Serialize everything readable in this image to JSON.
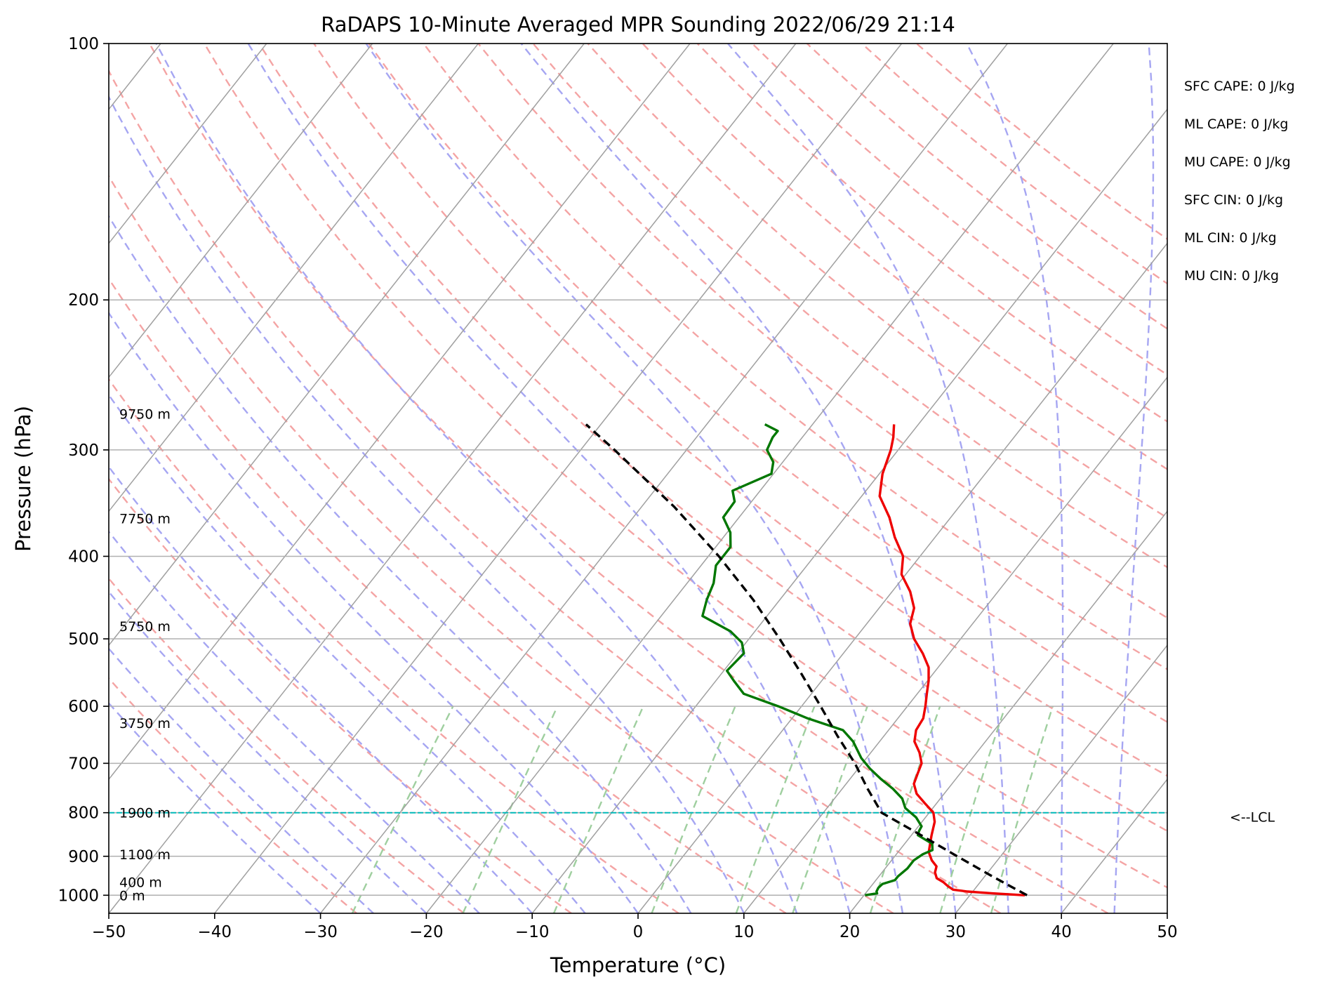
{
  "chart_data": {
    "type": "line",
    "title": "RaDAPS 10-Minute Averaged MPR Sounding 2022/06/29 21:14",
    "xlabel": "Temperature (°C)",
    "ylabel": "Pressure (hPa)",
    "xlim": [
      -50,
      50
    ],
    "ylim": [
      1050,
      100
    ],
    "y_scale": "log",
    "skew": "temperature lines slant up to the right",
    "grid": true,
    "x_ticks": [
      -50,
      -40,
      -30,
      -20,
      -10,
      0,
      10,
      20,
      30,
      40,
      50
    ],
    "x_tick_labels": [
      "−50",
      "−40",
      "−30",
      "−20",
      "−10",
      "0",
      "10",
      "20",
      "30",
      "40",
      "50"
    ],
    "y_ticks": [
      100,
      200,
      300,
      400,
      500,
      600,
      700,
      800,
      900,
      1000
    ],
    "y_tick_labels": [
      "100",
      "200",
      "300",
      "400",
      "500",
      "600",
      "700",
      "800",
      "900",
      "1000"
    ],
    "colors": {
      "temperature": "#ee0000",
      "dewpoint": "#007700",
      "parcel": "#000000",
      "dry_adiabats": "#f4a4a4",
      "moist_adiabats": "#a6a6f2",
      "mixing_ratio": "#9fcf9f",
      "isotherms": "#a0a0a0",
      "lcl_line": "#00b8b8"
    },
    "series": [
      {
        "key": "temperature",
        "points": [
          [
            1000,
            35.2
          ],
          [
            995,
            32
          ],
          [
            990,
            29.5
          ],
          [
            985,
            28
          ],
          [
            975,
            27.2
          ],
          [
            965,
            26.5
          ],
          [
            955,
            25.6
          ],
          [
            940,
            25
          ],
          [
            925,
            24.7
          ],
          [
            910,
            23.8
          ],
          [
            890,
            22.9
          ],
          [
            870,
            22.4
          ],
          [
            850,
            21.9
          ],
          [
            820,
            21.2
          ],
          [
            800,
            20.4
          ],
          [
            780,
            18.9
          ],
          [
            760,
            17.4
          ],
          [
            740,
            16.4
          ],
          [
            720,
            16
          ],
          [
            700,
            15.6
          ],
          [
            680,
            14.6
          ],
          [
            660,
            13.3
          ],
          [
            640,
            12.6
          ],
          [
            620,
            12.4
          ],
          [
            600,
            11.7
          ],
          [
            580,
            10.9
          ],
          [
            560,
            10.1
          ],
          [
            540,
            9.1
          ],
          [
            520,
            7.5
          ],
          [
            500,
            5.6
          ],
          [
            480,
            4.1
          ],
          [
            460,
            3.3
          ],
          [
            440,
            1.7
          ],
          [
            420,
            -0.4
          ],
          [
            400,
            -1.6
          ],
          [
            380,
            -3.8
          ],
          [
            360,
            -5.8
          ],
          [
            340,
            -8.3
          ],
          [
            320,
            -9.7
          ],
          [
            300,
            -10.7
          ],
          [
            290,
            -11.4
          ],
          [
            280,
            -12.3
          ]
        ]
      },
      {
        "key": "dewpoint",
        "points": [
          [
            1000,
            20.1
          ],
          [
            995,
            21.1
          ],
          [
            990,
            20.9
          ],
          [
            980,
            20.8
          ],
          [
            970,
            20.9
          ],
          [
            960,
            21.8
          ],
          [
            950,
            21.8
          ],
          [
            930,
            22.1
          ],
          [
            910,
            22.1
          ],
          [
            895,
            22.5
          ],
          [
            885,
            23.1
          ],
          [
            870,
            22.6
          ],
          [
            860,
            21.6
          ],
          [
            850,
            20.6
          ],
          [
            840,
            20.4
          ],
          [
            830,
            20.3
          ],
          [
            810,
            19.1
          ],
          [
            790,
            17.4
          ],
          [
            770,
            16.4
          ],
          [
            750,
            14.8
          ],
          [
            730,
            12.9
          ],
          [
            710,
            11.1
          ],
          [
            690,
            9.5
          ],
          [
            660,
            7.5
          ],
          [
            640,
            5.7
          ],
          [
            620,
            1.5
          ],
          [
            600,
            -2.2
          ],
          [
            580,
            -6.4
          ],
          [
            560,
            -8.3
          ],
          [
            545,
            -9.7
          ],
          [
            520,
            -9.4
          ],
          [
            505,
            -10.4
          ],
          [
            490,
            -12.3
          ],
          [
            470,
            -16.1
          ],
          [
            450,
            -16.9
          ],
          [
            430,
            -17.5
          ],
          [
            410,
            -18.6
          ],
          [
            390,
            -18.6
          ],
          [
            375,
            -19.7
          ],
          [
            360,
            -21.5
          ],
          [
            345,
            -21.6
          ],
          [
            335,
            -22.6
          ],
          [
            320,
            -20.2
          ],
          [
            310,
            -20.9
          ],
          [
            300,
            -22.4
          ],
          [
            290,
            -22.8
          ],
          [
            285,
            -22.8
          ],
          [
            280,
            -24.5
          ]
        ]
      },
      {
        "key": "parcel",
        "points": [
          [
            1000,
            35.4
          ],
          [
            950,
            30.7
          ],
          [
            900,
            25.9
          ],
          [
            850,
            20.9
          ],
          [
            800,
            15.5
          ],
          [
            750,
            12.4
          ],
          [
            700,
            9.3
          ],
          [
            650,
            5.6
          ],
          [
            600,
            1.8
          ],
          [
            550,
            -2.4
          ],
          [
            500,
            -7.1
          ],
          [
            450,
            -12.5
          ],
          [
            400,
            -19.0
          ],
          [
            350,
            -26.9
          ],
          [
            300,
            -36.8
          ],
          [
            280,
            -41.4
          ]
        ]
      }
    ],
    "lcl_pressure": 800,
    "lcl_label": "<--LCL",
    "height_labels": [
      {
        "text": "0 m",
        "pressure": 1000
      },
      {
        "text": "400 m",
        "pressure": 965
      },
      {
        "text": "1100 m",
        "pressure": 895
      },
      {
        "text": "1900 m",
        "pressure": 800
      },
      {
        "text": "3750 m",
        "pressure": 628
      },
      {
        "text": "5750 m",
        "pressure": 483
      },
      {
        "text": "7750 m",
        "pressure": 361
      },
      {
        "text": "9750 m",
        "pressure": 272
      }
    ],
    "indices": [
      "SFC CAPE: 0 J/kg",
      "ML CAPE: 0 J/kg",
      "MU CAPE: 0 J/kg",
      "SFC CIN: 0 J/kg",
      "ML CIN: 0 J/kg",
      "MU CIN: 0 J/kg"
    ]
  }
}
